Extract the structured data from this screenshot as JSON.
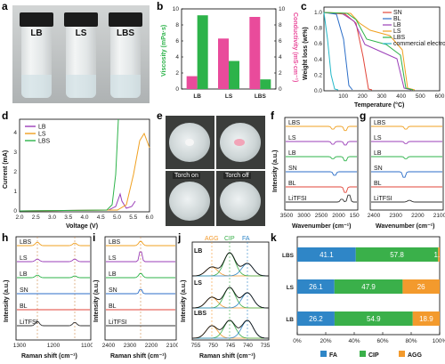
{
  "panel_letters": {
    "a": "a",
    "b": "b",
    "c": "c",
    "d": "d",
    "e": "e",
    "f": "f",
    "g": "g",
    "h": "h",
    "i": "i",
    "j": "j",
    "k": "k"
  },
  "a": {
    "vials": [
      "LB",
      "LS",
      "LBS"
    ]
  },
  "b": {
    "ylabel_left": "Viscosity (mPa·s)",
    "ylabel_right": "Conductivity (mS·cm⁻¹)",
    "left_ticks": [
      "0",
      "2",
      "4",
      "6",
      "8",
      "10"
    ],
    "right_ticks": [
      "0",
      "2",
      "4",
      "6",
      "8",
      "10"
    ]
  },
  "c": {
    "xlabel": "Temperature (°C)",
    "ylabel": "Weight loss (wt%)",
    "xticks": [
      "100",
      "200",
      "300",
      "400",
      "500",
      "600"
    ],
    "yticks": [
      "0.0",
      "0.2",
      "0.4",
      "0.6",
      "0.8",
      "1.0"
    ],
    "legend": [
      "SN",
      "BL",
      "LB",
      "LS",
      "LBS",
      "commercial electrolyte"
    ]
  },
  "d": {
    "xlabel": "Voltage (V)",
    "ylabel": "Current (mA)",
    "xticks": [
      "2.0",
      "2.5",
      "3.0",
      "3.5",
      "4.0",
      "4.5",
      "5.0",
      "5.5",
      "6.0"
    ],
    "yticks": [
      "0",
      "1",
      "2",
      "3",
      "4"
    ],
    "legend": [
      "LB",
      "LS",
      "LBS"
    ]
  },
  "e": {
    "captions": [
      "Torch on",
      "Torch off"
    ]
  },
  "f": {
    "xlabel": "Wavenumber (cm⁻¹)",
    "ylabel": "Intensity (a.u.)",
    "xticks": [
      "3500",
      "3000",
      "2500",
      "2000",
      "1500"
    ],
    "traces": [
      "LBS",
      "LS",
      "LB",
      "SN",
      "BL",
      "LiTFSI"
    ]
  },
  "g": {
    "xlabel": "Wavenumber (cm⁻¹)",
    "ylabel": "Intensity (a.u.)",
    "xticks": [
      "2400",
      "2300",
      "2200",
      "2100"
    ],
    "traces": [
      "LBS",
      "LS",
      "LB",
      "SN",
      "BL",
      "LiTFSI"
    ]
  },
  "h": {
    "xlabel": "Raman shift (cm⁻¹)",
    "ylabel": "Intensity (a.u.)",
    "xticks": [
      "1300",
      "1200",
      "1100"
    ],
    "traces": [
      "LBS",
      "LS",
      "LB",
      "SN",
      "BL",
      "LiTFSI"
    ]
  },
  "i": {
    "xlabel": "Raman shift (cm⁻¹)",
    "ylabel": "Intensity (a.u.)",
    "xticks": [
      "2400",
      "2300",
      "2200",
      "2100"
    ],
    "traces": [
      "LBS",
      "LS",
      "LB",
      "SN",
      "BL",
      "LiTFSI"
    ]
  },
  "j": {
    "xlabel": "Raman shift (cm⁻¹)",
    "ylabel": "Intensity (a.u.)",
    "xticks": [
      "755",
      "750",
      "745",
      "740",
      "735"
    ],
    "species": [
      "AGG",
      "CIP",
      "FA"
    ],
    "traces": [
      "LB",
      "LS",
      "LBS"
    ]
  },
  "chart_data": [
    {
      "type": "bar",
      "panel": "b",
      "categories": [
        "LB",
        "LS",
        "LBS"
      ],
      "series": [
        {
          "name": "Viscosity",
          "axis": "left",
          "color": "#2db34a",
          "values": [
            9.2,
            3.5,
            1.2
          ]
        },
        {
          "name": "Conductivity",
          "axis": "right",
          "color": "#e94b9b",
          "values": [
            1.6,
            6.3,
            9.0
          ]
        }
      ],
      "ylim_left": [
        0,
        10
      ],
      "ylim_right": [
        0,
        10
      ]
    },
    {
      "type": "bar",
      "panel": "k",
      "orientation": "horizontal-stacked",
      "categories": [
        "LBS",
        "LS",
        "LB"
      ],
      "series": [
        {
          "name": "FA",
          "color": "#2f86c7",
          "values": [
            41.1,
            26.1,
            26.2
          ]
        },
        {
          "name": "CIP",
          "color": "#3ab04a",
          "values": [
            57.8,
            47.9,
            54.9
          ]
        },
        {
          "name": "AGG",
          "color": "#f39a2d",
          "values": [
            1.1,
            26.0,
            18.9
          ]
        }
      ],
      "labels": [
        [
          "41.1",
          "57.8",
          "1.1"
        ],
        [
          "26.1",
          "47.9",
          "26"
        ],
        [
          "26.2",
          "54.9",
          "18.9"
        ]
      ],
      "xticks": [
        "0%",
        "20%",
        "40%",
        "60%",
        "80%",
        "100%"
      ],
      "xlim": [
        0,
        100
      ],
      "legend": [
        "FA",
        "CIP",
        "AGG"
      ]
    }
  ]
}
